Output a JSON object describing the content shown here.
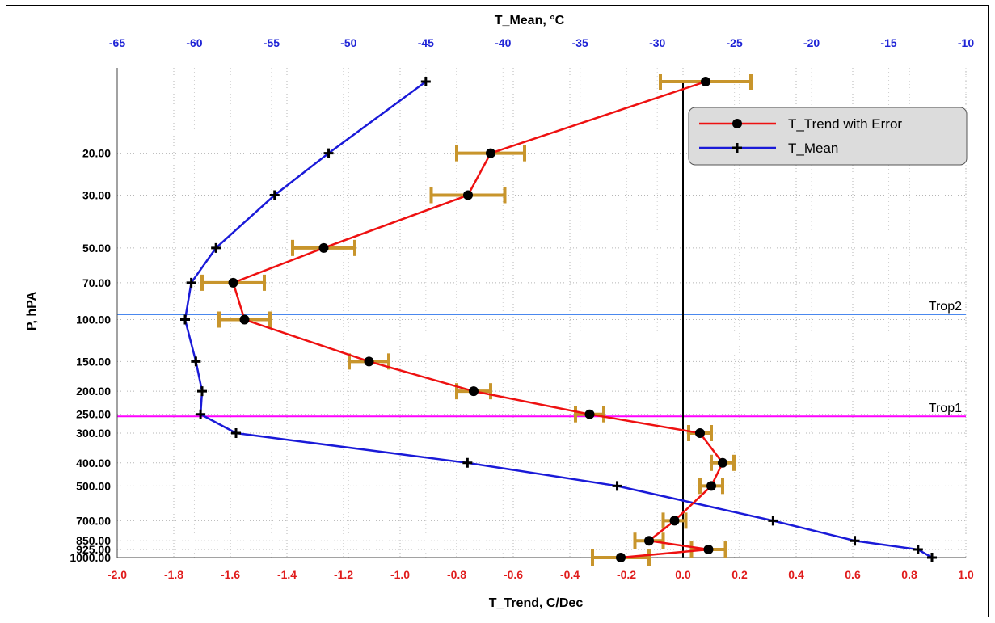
{
  "chart_data": {
    "type": "line",
    "title": "",
    "xlabel_bottom": "T_Trend, C/Dec",
    "xlabel_top": "T_Mean, °C",
    "ylabel": "P, hPA",
    "x_bottom_range": [
      -2.0,
      1.0
    ],
    "x_top_range": [
      -65,
      -10
    ],
    "y_scale": "log",
    "y_reversed": true,
    "y_range": [
      10,
      1000
    ],
    "grid": true,
    "legend_position": "top-right",
    "x_bottom_ticks": [
      "-2.0",
      "-1.8",
      "-1.6",
      "-1.4",
      "-1.2",
      "-1.0",
      "-0.8",
      "-0.6",
      "-0.4",
      "-0.2",
      "0.0",
      "0.2",
      "0.4",
      "0.6",
      "0.8",
      "1.0"
    ],
    "x_top_ticks": [
      "-65",
      "-60",
      "-55",
      "-50",
      "-45",
      "-40",
      "-35",
      "-30",
      "-25",
      "-20",
      "-15",
      "-10"
    ],
    "y_ticks": [
      "20.00",
      "30.00",
      "50.00",
      "70.00",
      "100.00",
      "150.00",
      "200.00",
      "250.00",
      "300.00",
      "400.00",
      "500.00",
      "700.00",
      "850.00",
      "925.00",
      "1000.00"
    ],
    "colors": {
      "trend": "#ee1111",
      "mean": "#1a1ad8",
      "error_bar": "#c8952c",
      "trop1": "#ff00ff",
      "trop2": "#4a88ee",
      "zero_line": "#000000"
    },
    "series": [
      {
        "name": "T_Trend with Error",
        "axis": "bottom",
        "points": [
          {
            "p": 10,
            "value": 0.08,
            "error": 0.16
          },
          {
            "p": 20,
            "value": -0.68,
            "error": 0.12
          },
          {
            "p": 30,
            "value": -0.76,
            "error": 0.13
          },
          {
            "p": 50,
            "value": -1.27,
            "error": 0.11
          },
          {
            "p": 70,
            "value": -1.59,
            "error": 0.11
          },
          {
            "p": 100,
            "value": -1.55,
            "error": 0.09
          },
          {
            "p": 150,
            "value": -1.11,
            "error": 0.07
          },
          {
            "p": 200,
            "value": -0.74,
            "error": 0.06
          },
          {
            "p": 250,
            "value": -0.33,
            "error": 0.05
          },
          {
            "p": 300,
            "value": 0.06,
            "error": 0.04
          },
          {
            "p": 400,
            "value": 0.14,
            "error": 0.04
          },
          {
            "p": 500,
            "value": 0.1,
            "error": 0.04
          },
          {
            "p": 700,
            "value": -0.03,
            "error": 0.04
          },
          {
            "p": 850,
            "value": -0.12,
            "error": 0.05
          },
          {
            "p": 925,
            "value": 0.09,
            "error": 0.06
          },
          {
            "p": 1000,
            "value": -0.22,
            "error": 0.1
          }
        ]
      },
      {
        "name": "T_Mean",
        "axis": "top",
        "points": [
          {
            "p": 10,
            "value": -45.0
          },
          {
            "p": 20,
            "value": -51.3
          },
          {
            "p": 30,
            "value": -54.8
          },
          {
            "p": 50,
            "value": -58.6
          },
          {
            "p": 70,
            "value": -60.2
          },
          {
            "p": 100,
            "value": -60.6
          },
          {
            "p": 150,
            "value": -59.9
          },
          {
            "p": 200,
            "value": -59.5
          },
          {
            "p": 250,
            "value": -59.6
          },
          {
            "p": 300,
            "value": -57.3
          },
          {
            "p": 400,
            "value": -42.3
          },
          {
            "p": 500,
            "value": -32.6
          },
          {
            "p": 700,
            "value": -22.5
          },
          {
            "p": 850,
            "value": -17.2
          },
          {
            "p": 925,
            "value": -13.1
          },
          {
            "p": 1000,
            "value": -12.2
          }
        ]
      }
    ],
    "reference_lines": [
      {
        "label": "Trop2",
        "p": 95
      },
      {
        "label": "Trop1",
        "p": 255
      }
    ]
  }
}
